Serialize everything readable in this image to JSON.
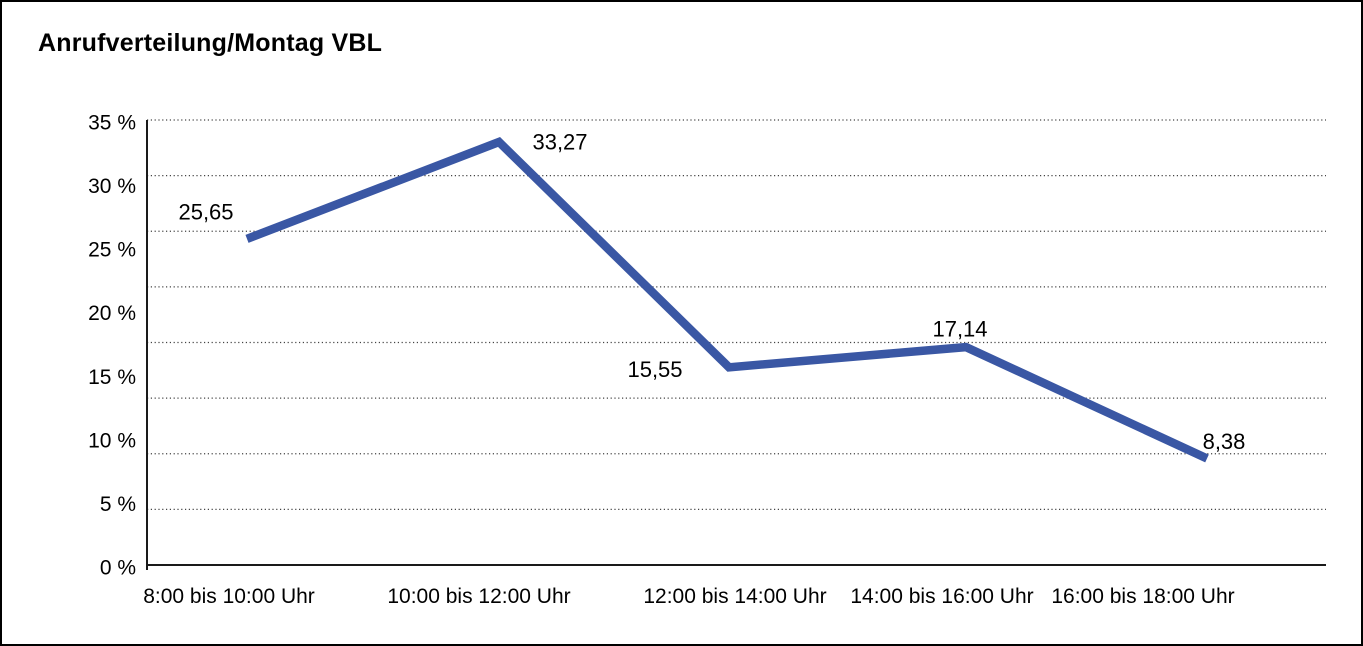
{
  "window": {
    "background_color": "#ffffff",
    "border_color": "#000000"
  },
  "chart_data": {
    "type": "line",
    "title": "Anrufverteilung/Montag VBL",
    "categories": [
      "8:00 bis 10:00 Uhr",
      "10:00 bis 12:00 Uhr",
      "12:00 bis 14:00 Uhr",
      "14:00 bis 16:00 Uhr",
      "16:00 bis 18:00 Uhr"
    ],
    "series": [
      {
        "values": [
          25.65,
          33.27,
          15.55,
          17.14,
          8.38
        ],
        "point_labels": [
          "25,65",
          "33,27",
          "15,55",
          "17,14",
          "8,38"
        ],
        "color": "#3A57A4"
      }
    ],
    "xlabel": "",
    "ylabel": "",
    "ylim": [
      0,
      35
    ],
    "y_tick_step": 5,
    "y_tick_labels": [
      "0 %",
      "5 %",
      "10 %",
      "15 %",
      "20 %",
      "25 %",
      "30 %",
      "35 %"
    ],
    "grid": "horizontal-dotted",
    "grid_color": "#444444",
    "axis_color": "#1a1a1a",
    "legend_position": "none"
  }
}
